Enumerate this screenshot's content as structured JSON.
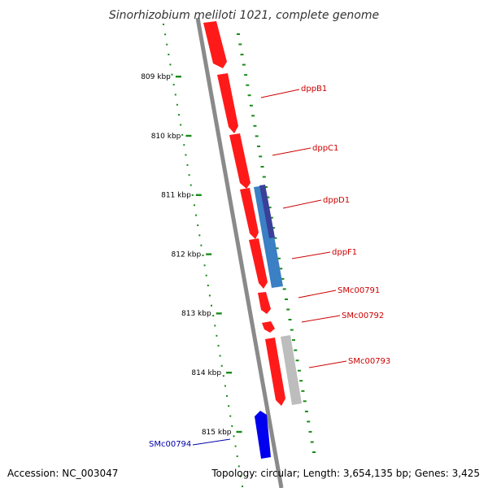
{
  "title": "Sinorhizobium meliloti 1021, complete genome",
  "accession": "Accession: NC_003047",
  "summary": "Topology: circular; Length: 3,654,135 bp; Genes: 3,425",
  "colors": {
    "forward_gene": "#ff0000",
    "reverse_gene": "#0000ee",
    "blue_feature": "#3b7fc4",
    "blue_feature_dark": "#3a3f9a",
    "grey_feature": "#b8b8b8",
    "tick_green": "#1a8a1a",
    "backbone": "#888888",
    "label_red": "#cc0000",
    "label_blue": "#0000aa"
  },
  "kbp_ticks": [
    {
      "label": "809 kbp",
      "pos": 809
    },
    {
      "label": "810 kbp",
      "pos": 810
    },
    {
      "label": "811 kbp",
      "pos": 811
    },
    {
      "label": "812 kbp",
      "pos": 812
    },
    {
      "label": "813 kbp",
      "pos": 813
    },
    {
      "label": "814 kbp",
      "pos": 814
    },
    {
      "label": "815 kbp",
      "pos": 815
    }
  ],
  "gene_labels": [
    {
      "name": "dppB1",
      "color": "red"
    },
    {
      "name": "dppC1",
      "color": "red"
    },
    {
      "name": "dppD1",
      "color": "red"
    },
    {
      "name": "dppF1",
      "color": "red"
    },
    {
      "name": "SMc00791",
      "color": "red"
    },
    {
      "name": "SMc00792",
      "color": "red"
    },
    {
      "name": "SMc00793",
      "color": "red"
    },
    {
      "name": "SMc00794",
      "color": "blue"
    }
  ]
}
